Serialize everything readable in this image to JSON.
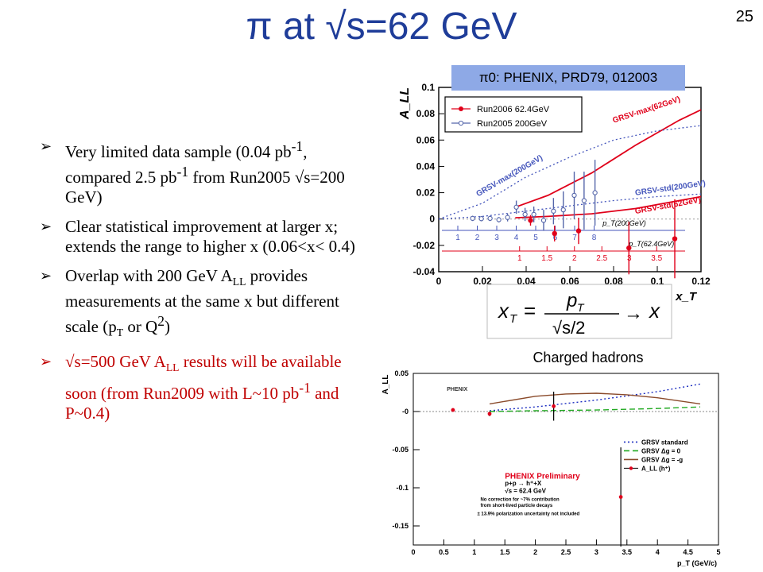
{
  "slide": {
    "title": "π at √s=62 GeV",
    "page_number": "25",
    "reference_box": "π0: PHENIX, PRD79, 012003",
    "charged_label": "Charged hadrons",
    "bullets": [
      {
        "pre": "Very limited data sample (0.04 pb",
        "sup1": "-1",
        "mid": ", compared 2.5 pb",
        "sup2": "-1",
        "post": " from Run2005 √s=200 GeV)"
      },
      {
        "text": "Clear statistical improvement at larger x; extends the range to higher x (0.06<x< 0.4)"
      },
      {
        "pre": "Overlap with 200 GeV A",
        "sub1": "LL",
        "mid": " provides measurements at the same x but different scale (p",
        "sub2": "T",
        "mid2": " or Q",
        "sup3": "2",
        "post": ")"
      },
      {
        "pre": "√s=500 GeV A",
        "sub1": "LL",
        "mid": " results will be available soon (from Run2009 with L~10 pb",
        "sup1": "-1",
        "post": " and P~0.4)"
      }
    ],
    "formula": {
      "lhs": "x",
      "lhs_sub": "T",
      "num": "p",
      "num_sub": "T",
      "den": "√s/2",
      "rhs": "x"
    }
  },
  "chart_data": [
    {
      "type": "scatter",
      "ylabel": "A_LL",
      "xlabel": "x_T",
      "xlim": [
        0,
        0.12
      ],
      "ylim": [
        -0.04,
        0.1
      ],
      "x_ticks": [
        "0",
        "0.02",
        "0.04",
        "0.06",
        "0.08",
        "0.1",
        "0.12"
      ],
      "y_ticks": [
        "-0.04",
        "-0.02",
        "0",
        "0.02",
        "0.04",
        "0.06",
        "0.08",
        "0.1"
      ],
      "legend": {
        "position": "top-left",
        "entries": [
          "Run2006  62.4GeV",
          "Run2005   200GeV"
        ]
      },
      "series": [
        {
          "name": "Run2006  62.4GeV",
          "color": "#e0001a",
          "points": [
            {
              "x": 0.042,
              "y": -0.001,
              "err": 0.004
            },
            {
              "x": 0.053,
              "y": -0.011,
              "err": 0.006
            },
            {
              "x": 0.064,
              "y": -0.009,
              "err": 0.01
            },
            {
              "x": 0.087,
              "y": -0.022,
              "err": 0.02
            },
            {
              "x": 0.108,
              "y": -0.015,
              "err": 0.03
            }
          ]
        },
        {
          "name": "Run2005   200GeV",
          "color": "#5566aa",
          "points": [
            {
              "x": 0.0155,
              "y": 0.0005,
              "err": 0.002
            },
            {
              "x": 0.0195,
              "y": 0.0003,
              "err": 0.002
            },
            {
              "x": 0.0235,
              "y": 0.0005,
              "err": 0.002
            },
            {
              "x": 0.0275,
              "y": -0.0005,
              "err": 0.002
            },
            {
              "x": 0.0315,
              "y": 0.0012,
              "err": 0.003
            },
            {
              "x": 0.0355,
              "y": 0.009,
              "err": 0.005
            },
            {
              "x": 0.0395,
              "y": 0.0035,
              "err": 0.005
            },
            {
              "x": 0.0435,
              "y": 0.0035,
              "err": 0.006
            },
            {
              "x": 0.048,
              "y": -0.001,
              "err": 0.008
            },
            {
              "x": 0.0525,
              "y": 0.006,
              "err": 0.01
            },
            {
              "x": 0.057,
              "y": 0.007,
              "err": 0.014
            },
            {
              "x": 0.062,
              "y": 0.018,
              "err": 0.018
            },
            {
              "x": 0.0665,
              "y": 0.014,
              "err": 0.022
            },
            {
              "x": 0.0715,
              "y": 0.02,
              "err": 0.025
            }
          ]
        }
      ],
      "curves": [
        {
          "name": "GRSV-max(62GeV)",
          "color": "#e0001a",
          "style": "solid",
          "x": [
            0.035,
            0.05,
            0.07,
            0.09,
            0.11,
            0.12
          ],
          "y": [
            0.009,
            0.018,
            0.035,
            0.056,
            0.075,
            0.083
          ]
        },
        {
          "name": "GRSV-std(62GeV)",
          "color": "#e0001a",
          "style": "solid",
          "x": [
            0.035,
            0.05,
            0.07,
            0.09,
            0.11,
            0.12
          ],
          "y": [
            0.001,
            0.002,
            0.004,
            0.008,
            0.014,
            0.017
          ]
        },
        {
          "name": "GRSV-max(200GeV)",
          "color": "#4455bb",
          "style": "dotted",
          "x": [
            0.0,
            0.02,
            0.04,
            0.06,
            0.08,
            0.1,
            0.12
          ],
          "y": [
            0.0,
            0.012,
            0.032,
            0.047,
            0.06,
            0.067,
            0.071
          ]
        },
        {
          "name": "GRSV-std(200GeV)",
          "color": "#4455bb",
          "style": "dotted",
          "x": [
            0.0,
            0.02,
            0.04,
            0.06,
            0.08,
            0.1,
            0.12
          ],
          "y": [
            0.0,
            0.002,
            0.006,
            0.01,
            0.014,
            0.017,
            0.019
          ]
        }
      ],
      "pt_scales": [
        {
          "label": "p_T(200GeV)",
          "ticks": [
            "1",
            "2",
            "3",
            "4",
            "5",
            "6",
            "7",
            "8"
          ],
          "color": "#4455bb"
        },
        {
          "label": "p_T(62.4GeV)",
          "ticks": [
            "1",
            "1.5",
            "2",
            "2.5",
            "3",
            "3.5"
          ],
          "color": "#e0001a"
        }
      ]
    },
    {
      "type": "scatter",
      "ylabel": "A_LL",
      "xlabel": "p_T (GeV/c)",
      "xlim": [
        0,
        5
      ],
      "ylim": [
        -0.175,
        0.05
      ],
      "x_ticks": [
        "0",
        "0.5",
        "1",
        "1.5",
        "2",
        "2.5",
        "3",
        "3.5",
        "4",
        "4.5",
        "5"
      ],
      "y_ticks": [
        "0.05",
        "-0",
        "-0.05",
        "-0.1",
        "-0.15"
      ],
      "legend": {
        "position": "right",
        "entries": [
          "GRSV standard",
          "GRSV Δg = 0",
          "GRSV Δg = -g",
          "A_LL (h⁺)"
        ]
      },
      "annotations": [
        "PHENIX Preliminary",
        "p+p → h⁺+X",
        "√s = 62.4 GeV",
        "No correction for ~7% contribution",
        "from short-lived particle decays",
        "± 13.9% polarization uncertainty not included"
      ],
      "series": [
        {
          "name": "A_LL (h⁺)",
          "color": "#e0001a",
          "points": [
            {
              "x": 0.65,
              "y": 0.002,
              "err": 0.002
            },
            {
              "x": 1.25,
              "y": -0.003,
              "err": 0.003
            },
            {
              "x": 2.3,
              "y": 0.007,
              "err": 0.019
            },
            {
              "x": 3.4,
              "y": -0.112,
              "err": 0.065
            }
          ]
        }
      ],
      "curves": [
        {
          "name": "GRSV standard",
          "color": "#1a2cc0",
          "style": "dotted",
          "x": [
            1.25,
            2,
            3,
            4,
            4.7
          ],
          "y": [
            0.001,
            0.006,
            0.015,
            0.026,
            0.036
          ]
        },
        {
          "name": "GRSV Δg = 0",
          "color": "#22aa22",
          "style": "dashed",
          "x": [
            1.25,
            2,
            3,
            4,
            4.7
          ],
          "y": [
            0,
            0.001,
            0.002,
            0.004,
            0.006
          ]
        },
        {
          "name": "GRSV Δg = -g",
          "color": "#8a4a2a",
          "style": "solid",
          "x": [
            1.25,
            2,
            2.5,
            3,
            3.5,
            4,
            4.7
          ],
          "y": [
            0.01,
            0.02,
            0.023,
            0.024,
            0.022,
            0.018,
            0.01
          ]
        }
      ]
    }
  ]
}
